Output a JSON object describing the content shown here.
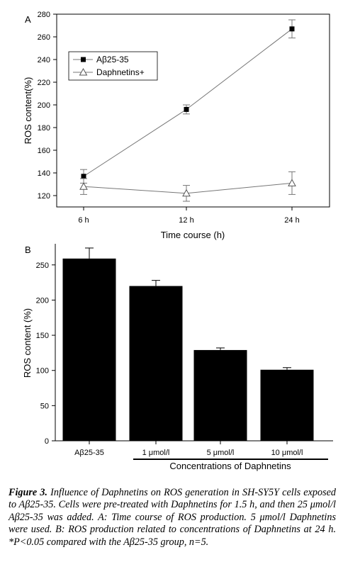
{
  "chart_data": [
    {
      "type": "line",
      "panel_label": "A",
      "xlabel": "Time course (h)",
      "ylabel": "ROS content(%)",
      "categories": [
        "6 h",
        "12 h",
        "24 h"
      ],
      "ylim": [
        110,
        280
      ],
      "yticks": [
        120,
        140,
        160,
        180,
        200,
        220,
        240,
        260,
        280
      ],
      "grid": false,
      "legend_position": "top-left",
      "series": [
        {
          "name": "Aβ25-35",
          "marker": "filled-square",
          "values": [
            137,
            196,
            267
          ],
          "errors": [
            6,
            4,
            8
          ]
        },
        {
          "name": "Daphnetins+",
          "marker": "open-triangle",
          "values": [
            128,
            122,
            131
          ],
          "errors": [
            7,
            7,
            10
          ]
        }
      ]
    },
    {
      "type": "bar",
      "panel_label": "B",
      "xlabel": "Concentrations of Daphnetins",
      "ylabel": "ROS content (%)",
      "categories": [
        "Aβ25-35",
        "1 μmol/l",
        "5 μmol/l",
        "10 μmol/l"
      ],
      "values": [
        259,
        220,
        129,
        101
      ],
      "errors": [
        15,
        8,
        3,
        3
      ],
      "ylim": [
        0,
        280
      ],
      "yticks": [
        0,
        50,
        100,
        150,
        200,
        250
      ],
      "grid": false,
      "bar_color": "#000000"
    }
  ],
  "caption": {
    "label": "Figure 3.",
    "text": "Influence of Daphnetins on ROS generation in SH-SY5Y cells exposed to Aβ25-35. Cells were pre-treated with Daphnetins for 1.5 h, and then 25 μmol/l Aβ25-35 was added. A: Time course of ROS production. 5 μmol/l Daphnetins were used. B: ROS production related to concentrations of Daphnetins at 24 h. *P<0.05 compared with the Aβ25-35 group, n=5."
  }
}
